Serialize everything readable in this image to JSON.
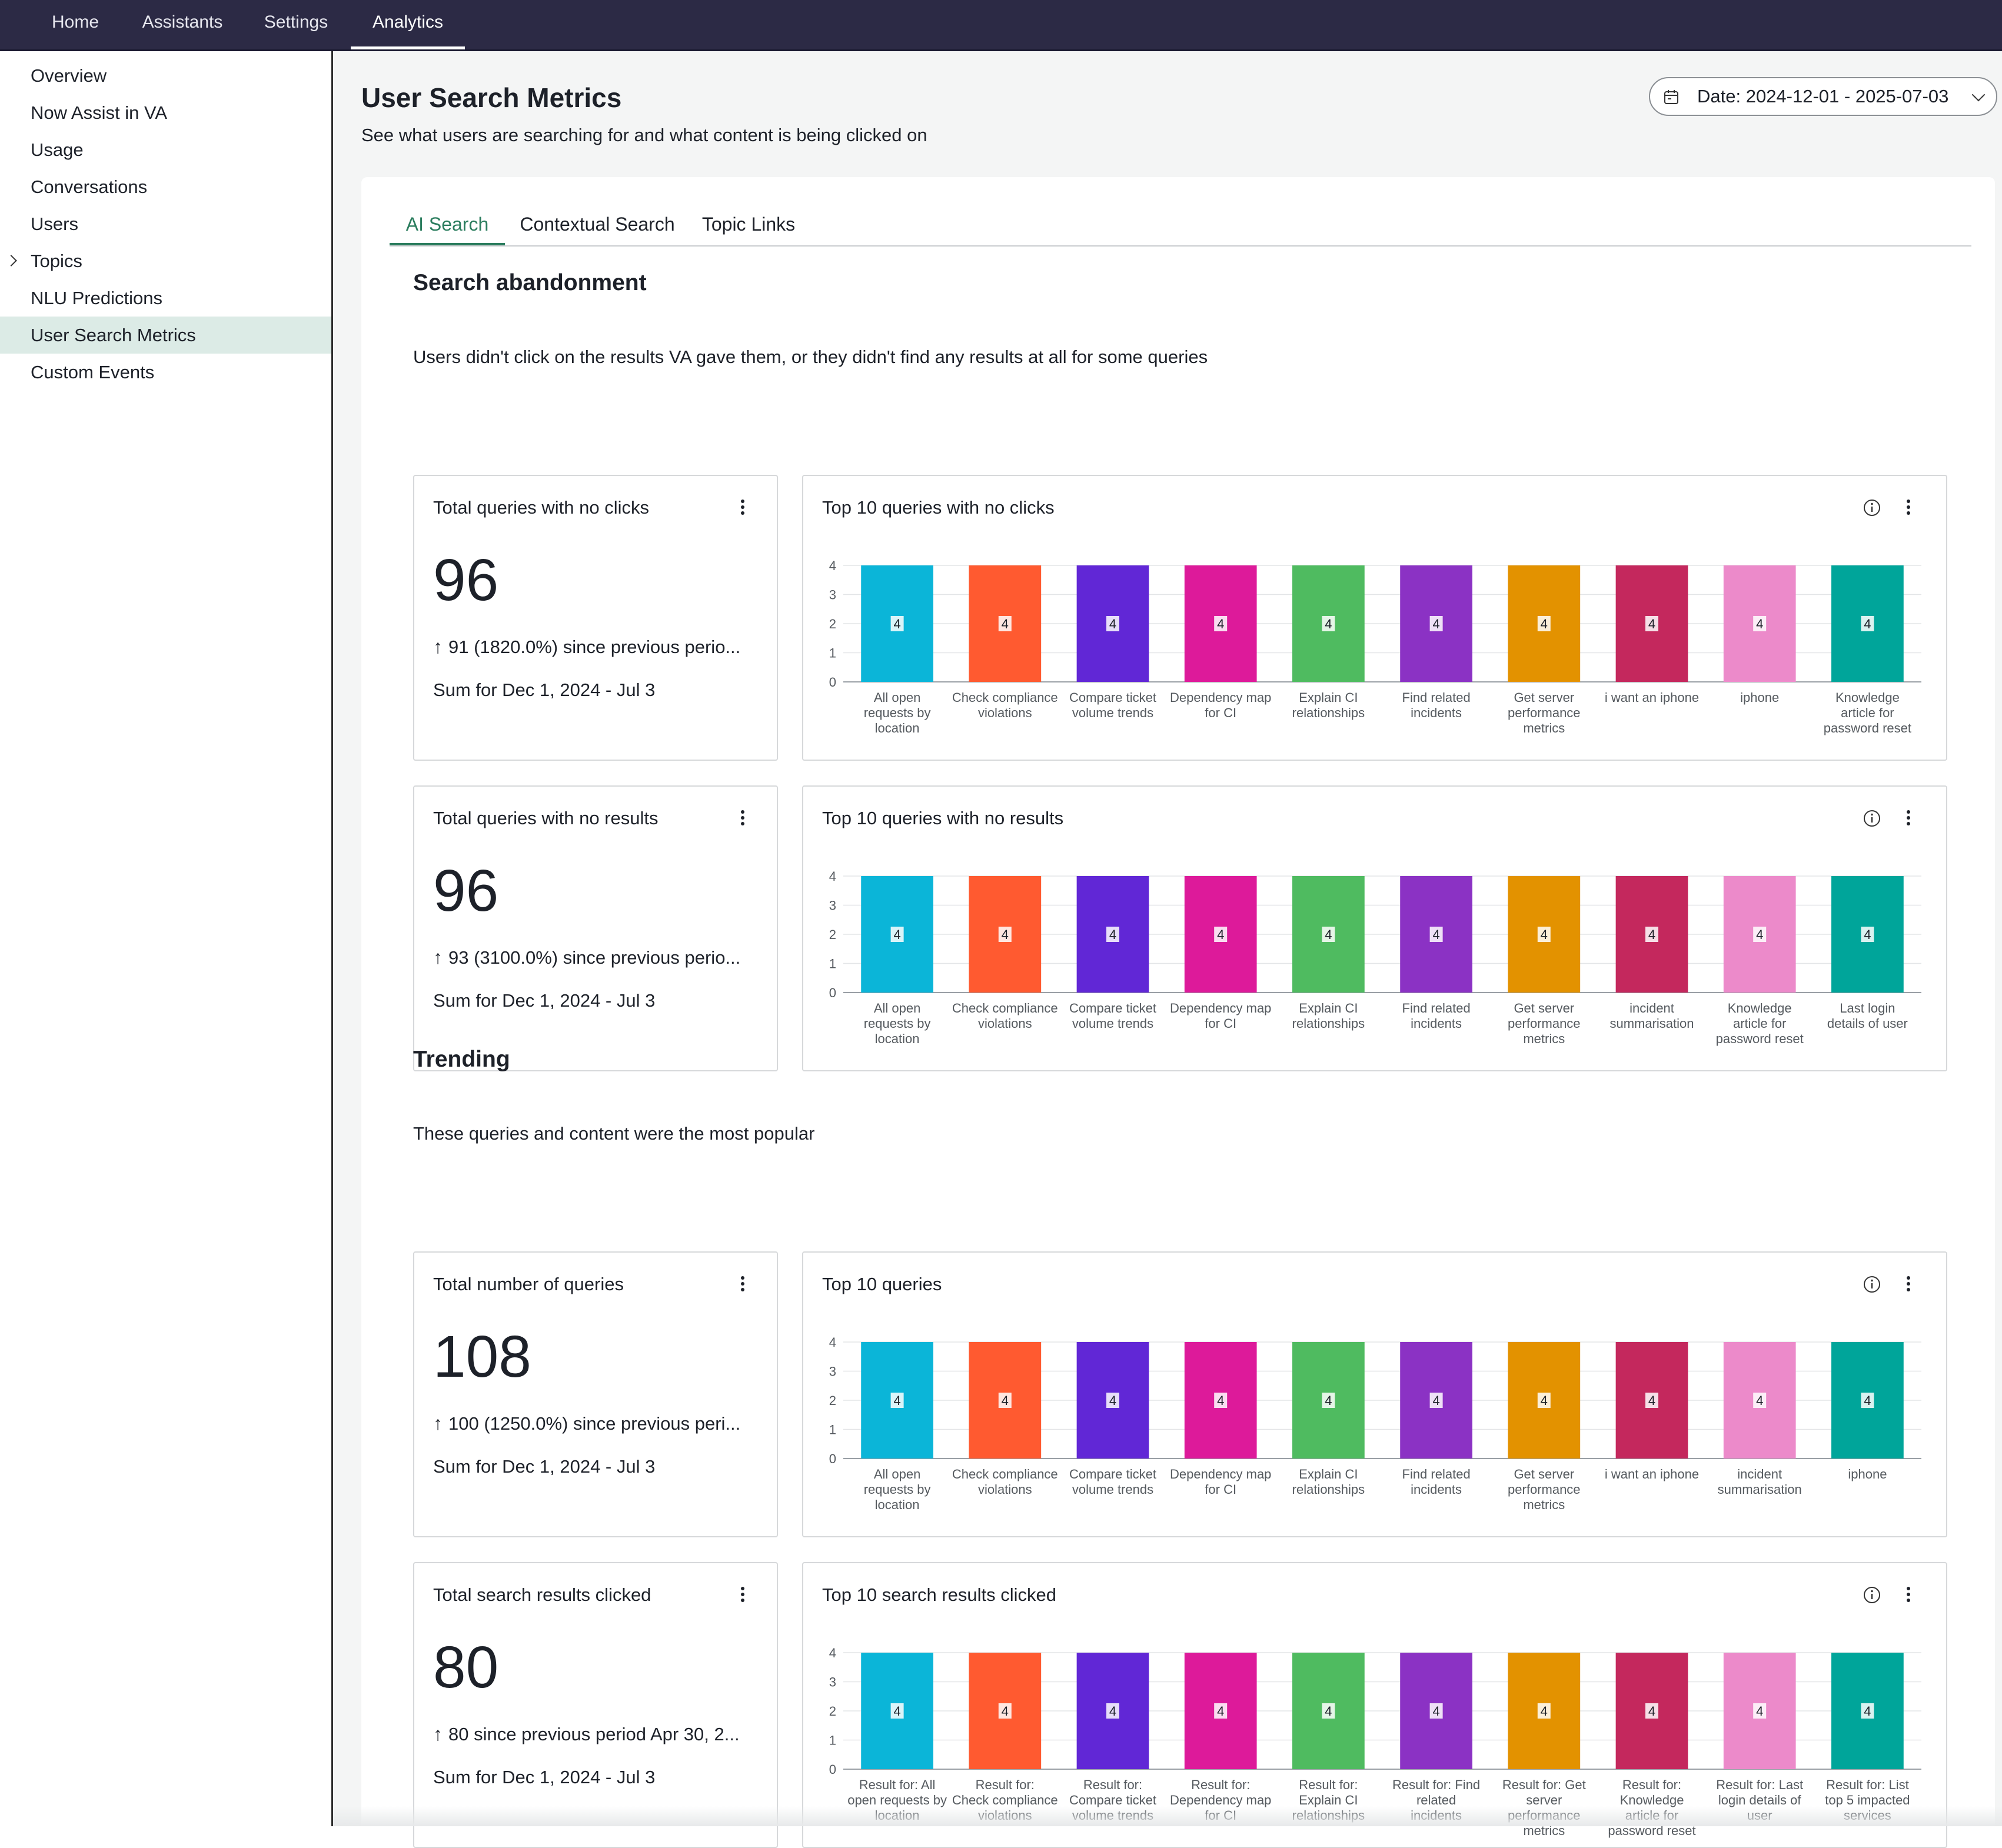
{
  "topnav": {
    "items": [
      {
        "label": "Home"
      },
      {
        "label": "Assistants"
      },
      {
        "label": "Settings"
      },
      {
        "label": "Analytics",
        "active": true
      }
    ]
  },
  "sidebar": {
    "items": [
      {
        "label": "Overview"
      },
      {
        "label": "Now Assist in VA"
      },
      {
        "label": "Usage"
      },
      {
        "label": "Conversations"
      },
      {
        "label": "Users"
      },
      {
        "label": "Topics",
        "expandable": true
      },
      {
        "label": "NLU Predictions"
      },
      {
        "label": "User Search Metrics",
        "active": true
      },
      {
        "label": "Custom Events"
      }
    ]
  },
  "page": {
    "title": "User Search Metrics",
    "subtitle": "See what users are searching for and what content is being clicked on",
    "date_filter": "Date: 2024-12-01 - 2025-07-03"
  },
  "tabs": [
    {
      "label": "AI Search",
      "active": true
    },
    {
      "label": "Contextual Search"
    },
    {
      "label": "Topic Links"
    }
  ],
  "sections": {
    "abandonment": {
      "title": "Search abandonment",
      "description": "Users didn't click on the results VA gave them, or they didn't find any results at all for some queries"
    },
    "trending": {
      "title": "Trending",
      "description": "These queries and content were the most popular"
    }
  },
  "kpis": [
    {
      "title": "Total queries with no clicks",
      "value": "96",
      "delta": "91 (1820.0%) since previous perio...",
      "sum": "Sum for Dec 1, 2024 - Jul 3"
    },
    {
      "title": "Total queries with no results",
      "value": "96",
      "delta": "93 (3100.0%) since previous perio...",
      "sum": "Sum for Dec 1, 2024 - Jul 3"
    },
    {
      "title": "Total number of queries",
      "value": "108",
      "delta": "100 (1250.0%) since previous peri...",
      "sum": "Sum for Dec 1, 2024 - Jul 3"
    },
    {
      "title": "Total search results clicked",
      "value": "80",
      "delta": "80  since previous period Apr 30, 2...",
      "sum": "Sum for Dec 1, 2024 - Jul 3"
    }
  ],
  "colors": [
    "#0bb5d8",
    "#ff5a30",
    "#6127d6",
    "#dd1a9a",
    "#4fbb60",
    "#8b32c4",
    "#e39200",
    "#c4285d",
    "#ec8aca",
    "#00a59a"
  ],
  "chart_data": [
    {
      "type": "bar",
      "title": "Top 10 queries with no clicks",
      "categories": [
        "All open requests by location",
        "Check compliance violations",
        "Compare ticket volume trends",
        "Dependency map for CI",
        "Explain CI relationships",
        "Find related incidents",
        "Get server performance metrics",
        "i want an iphone",
        "iphone",
        "Knowledge article for password reset"
      ],
      "values": [
        4,
        4,
        4,
        4,
        4,
        4,
        4,
        4,
        4,
        4
      ],
      "ylim": [
        0,
        4
      ],
      "yticks": [
        0,
        1,
        2,
        3,
        4
      ],
      "grid": true,
      "legend": "none"
    },
    {
      "type": "bar",
      "title": "Top 10 queries with no results",
      "categories": [
        "All open requests by location",
        "Check compliance violations",
        "Compare ticket volume trends",
        "Dependency map for CI",
        "Explain CI relationships",
        "Find related incidents",
        "Get server performance metrics",
        "incident summarisation",
        "Knowledge article for password reset",
        "Last login details of user"
      ],
      "values": [
        4,
        4,
        4,
        4,
        4,
        4,
        4,
        4,
        4,
        4
      ],
      "ylim": [
        0,
        4
      ],
      "yticks": [
        0,
        1,
        2,
        3,
        4
      ],
      "grid": true,
      "legend": "none"
    },
    {
      "type": "bar",
      "title": "Top 10 queries",
      "categories": [
        "All open requests by location",
        "Check compliance violations",
        "Compare ticket volume trends",
        "Dependency map for CI",
        "Explain CI relationships",
        "Find related incidents",
        "Get server performance metrics",
        "i want an iphone",
        "incident summarisation",
        "iphone"
      ],
      "values": [
        4,
        4,
        4,
        4,
        4,
        4,
        4,
        4,
        4,
        4
      ],
      "ylim": [
        0,
        4
      ],
      "yticks": [
        0,
        1,
        2,
        3,
        4
      ],
      "grid": true,
      "legend": "none"
    },
    {
      "type": "bar",
      "title": "Top 10 search results clicked",
      "categories": [
        "Result for: All open requests by location",
        "Result for: Check compliance violations",
        "Result for: Compare ticket volume trends",
        "Result for: Dependency map for CI",
        "Result for: Explain CI relationships",
        "Result for: Find related incidents",
        "Result for: Get server performance metrics",
        "Result for: Knowledge article for password reset",
        "Result for: Last login details of user",
        "Result for: List top 5 impacted services"
      ],
      "values": [
        4,
        4,
        4,
        4,
        4,
        4,
        4,
        4,
        4,
        4
      ],
      "ylim": [
        0,
        4
      ],
      "yticks": [
        0,
        1,
        2,
        3,
        4
      ],
      "grid": true,
      "legend": "none"
    }
  ]
}
